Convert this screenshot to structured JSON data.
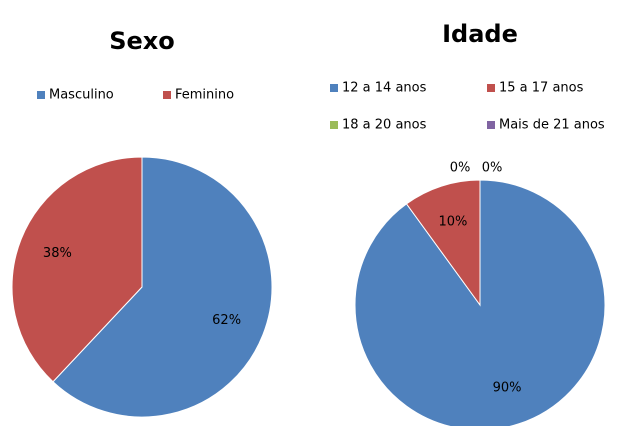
{
  "chart_data": [
    {
      "type": "pie",
      "title": "Sexo",
      "categories": [
        "Masculino",
        "Feminino"
      ],
      "values": [
        62,
        38
      ],
      "value_labels": [
        "62%",
        "38%"
      ],
      "colors": [
        "#4f81bd",
        "#c0504d"
      ]
    },
    {
      "type": "pie",
      "title": "Idade",
      "categories": [
        "12 a 14 anos",
        "15 a 17 anos",
        "18 a 20 anos",
        "Mais de 21 anos"
      ],
      "values": [
        90,
        10,
        0,
        0
      ],
      "value_labels": [
        "90%",
        "10%",
        "0%",
        "0%"
      ],
      "colors": [
        "#4f81bd",
        "#c0504d",
        "#9bbb59",
        "#8064a2"
      ]
    }
  ]
}
